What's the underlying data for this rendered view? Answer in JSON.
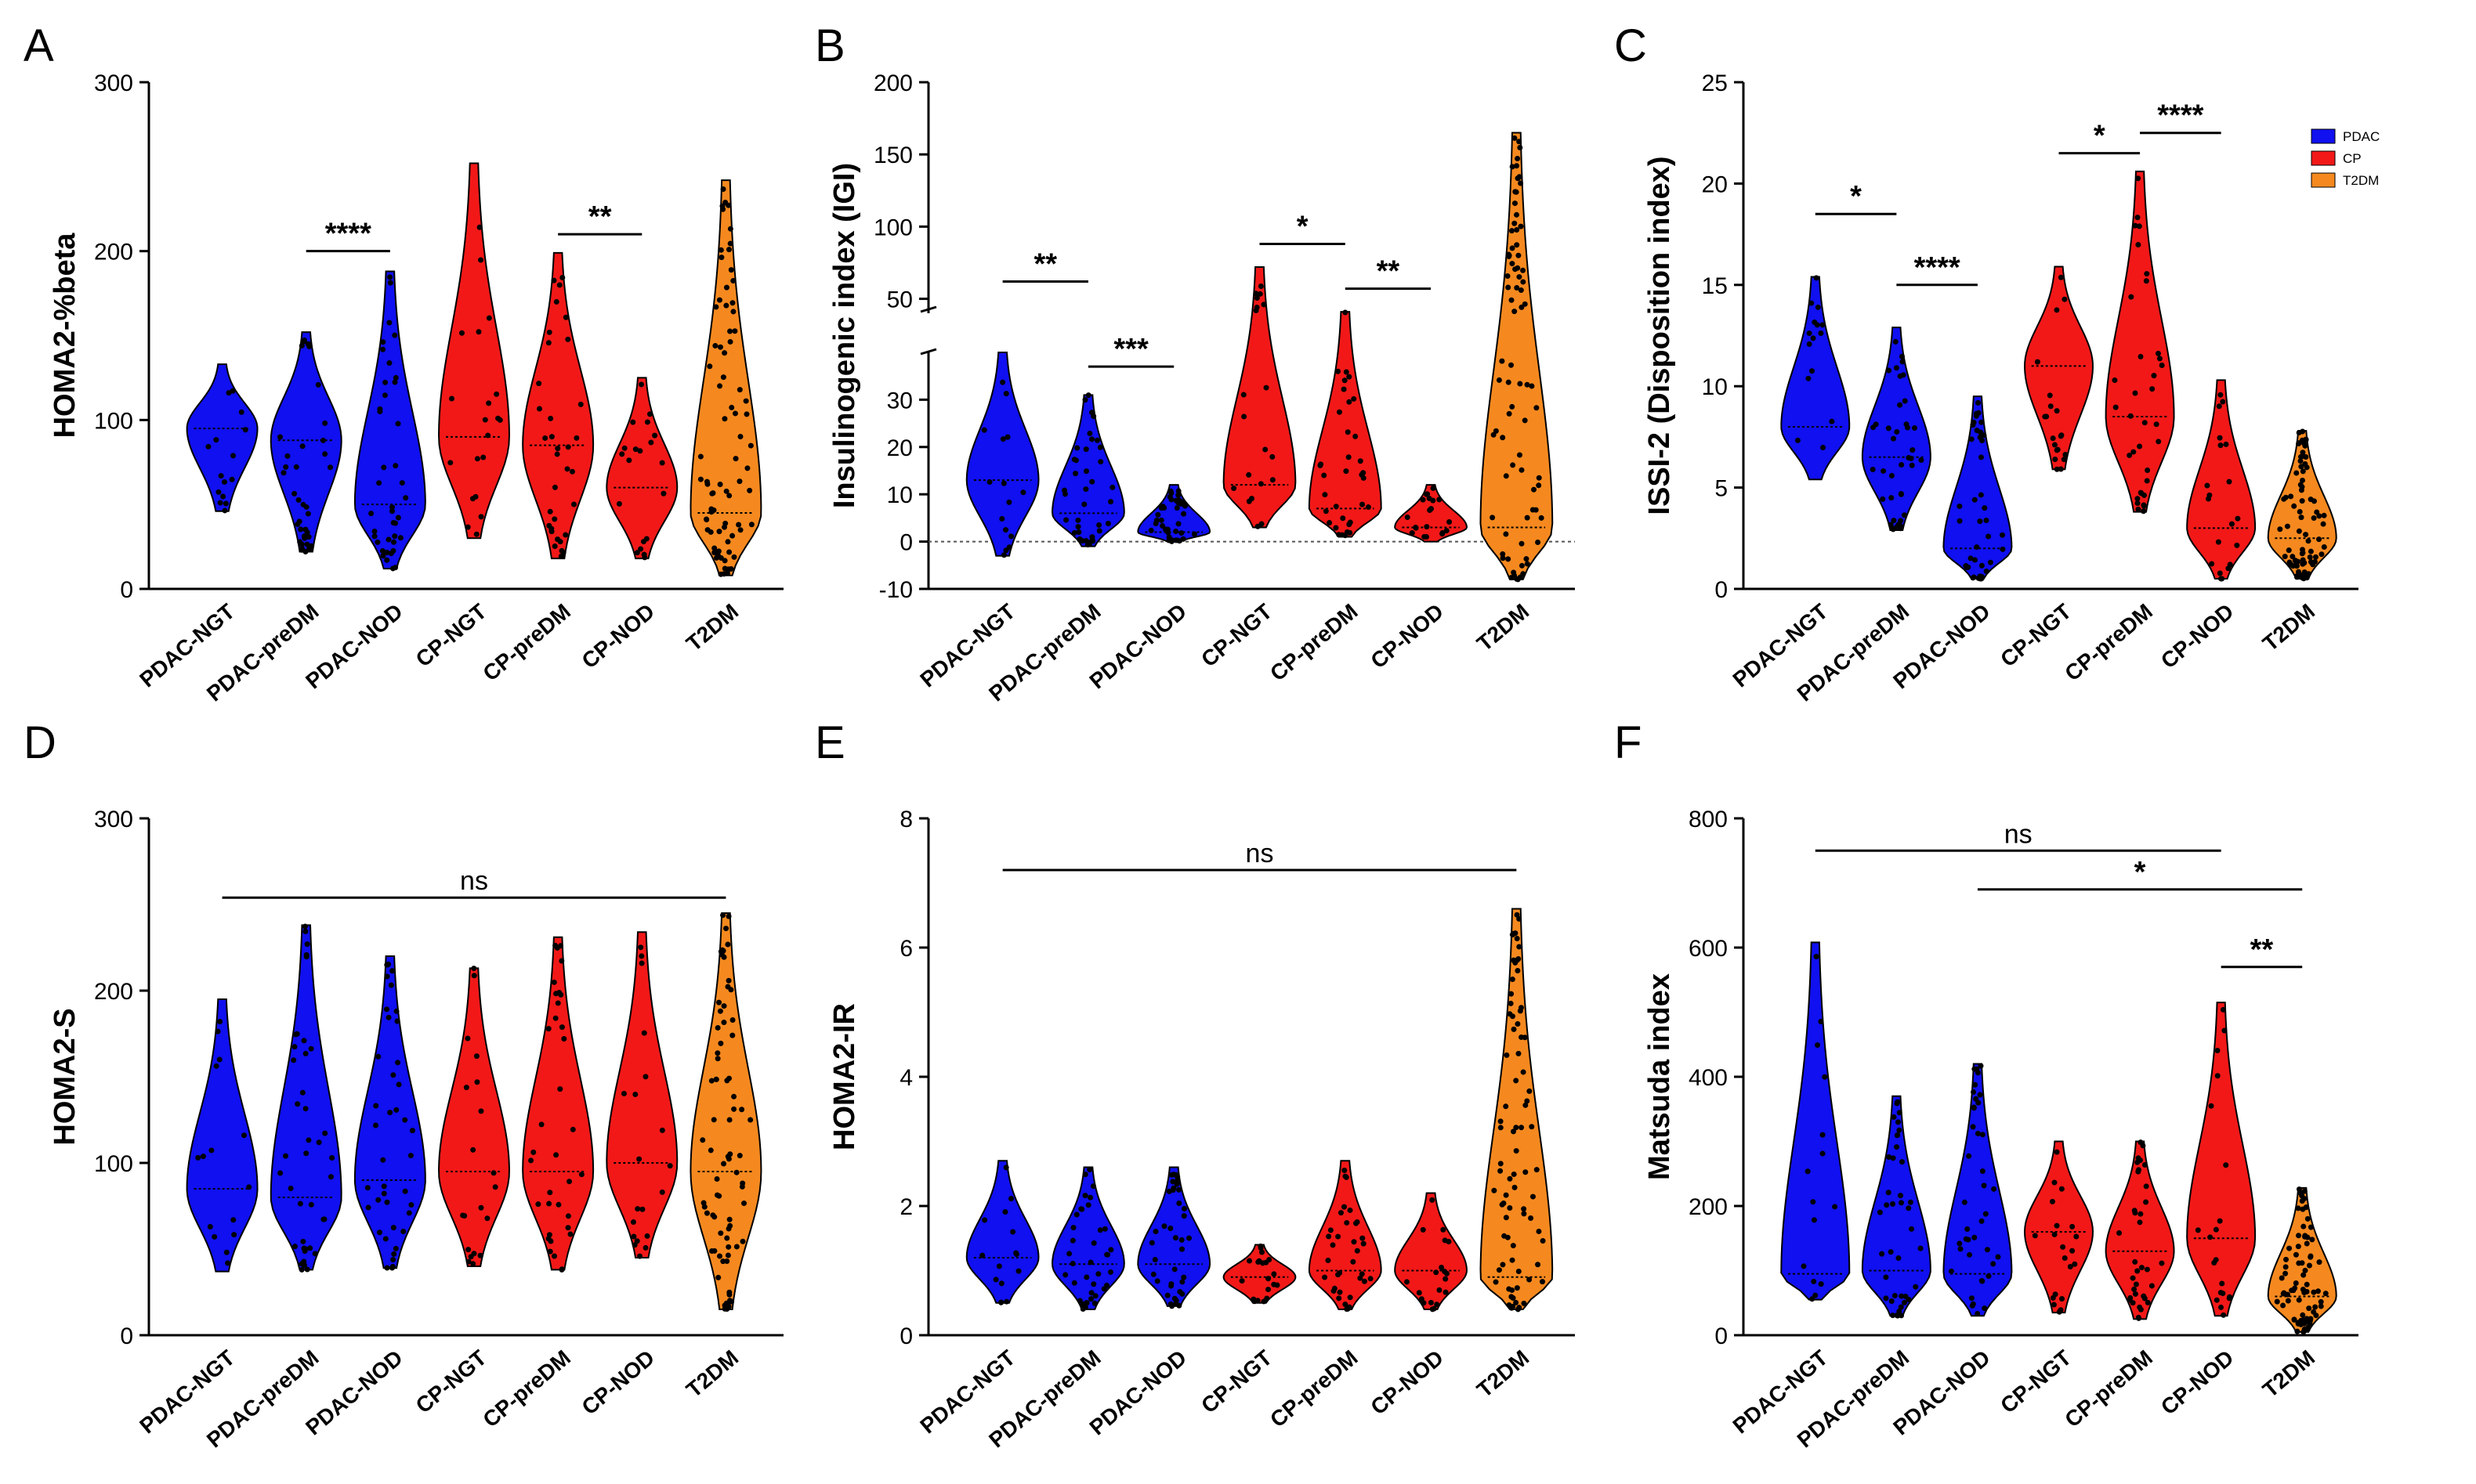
{
  "colors": {
    "PDAC": "#1010f0",
    "CP": "#f21818",
    "T2DM": "#f5891f",
    "axis": "#000000",
    "point": "#000000"
  },
  "chart_data": [
    {
      "panel": "A",
      "type": "violin",
      "title": "",
      "xlabel": "",
      "ylabel": "HOMA2-%beta",
      "ylim": [
        0,
        300
      ],
      "yticks": [
        0,
        100,
        200,
        300
      ],
      "categories": [
        "PDAC-NGT",
        "PDAC-preDM",
        "PDAC-NOD",
        "CP-NGT",
        "CP-preDM",
        "CP-NOD",
        "T2DM"
      ],
      "groups": [
        "PDAC",
        "PDAC",
        "PDAC",
        "CP",
        "CP",
        "CP",
        "T2DM"
      ],
      "series": [
        {
          "name": "PDAC-NGT",
          "min": 46,
          "max": 133,
          "median": 95,
          "n": 15
        },
        {
          "name": "PDAC-preDM",
          "min": 22,
          "max": 152,
          "median": 88,
          "n": 40
        },
        {
          "name": "PDAC-NOD",
          "min": 12,
          "max": 188,
          "median": 50,
          "n": 40
        },
        {
          "name": "CP-NGT",
          "min": 30,
          "max": 252,
          "median": 90,
          "n": 20
        },
        {
          "name": "CP-preDM",
          "min": 18,
          "max": 199,
          "median": 85,
          "n": 35
        },
        {
          "name": "CP-NOD",
          "min": 18,
          "max": 125,
          "median": 60,
          "n": 20
        },
        {
          "name": "T2DM",
          "min": 8,
          "max": 242,
          "median": 45,
          "n": 80
        }
      ],
      "significance": [
        {
          "from": 1,
          "to": 2,
          "y": 200,
          "label": "****"
        },
        {
          "from": 4,
          "to": 5,
          "y": 210,
          "label": "**"
        }
      ]
    },
    {
      "panel": "B",
      "type": "violin",
      "title": "",
      "xlabel": "",
      "ylabel": "Insulinogenic index (IGI)",
      "ylim": [
        -10,
        200
      ],
      "axis_break": {
        "lower": [
          -10,
          40
        ],
        "upper": [
          40,
          200
        ]
      },
      "yticks": [
        -10,
        0,
        10,
        20,
        30,
        50,
        100,
        150,
        200
      ],
      "categories": [
        "PDAC-NGT",
        "PDAC-preDM",
        "PDAC-NOD",
        "CP-NGT",
        "CP-preDM",
        "CP-NOD",
        "T2DM"
      ],
      "groups": [
        "PDAC",
        "PDAC",
        "PDAC",
        "CP",
        "CP",
        "CP",
        "T2DM"
      ],
      "series": [
        {
          "name": "PDAC-NGT",
          "min": -3,
          "max": 40,
          "median": 13,
          "n": 15
        },
        {
          "name": "PDAC-preDM",
          "min": -1,
          "max": 31,
          "median": 6,
          "n": 40
        },
        {
          "name": "PDAC-NOD",
          "min": 0,
          "max": 12,
          "median": 2,
          "n": 40
        },
        {
          "name": "CP-NGT",
          "min": 3,
          "max": 72,
          "median": 12,
          "n": 20
        },
        {
          "name": "CP-preDM",
          "min": 1,
          "max": 41,
          "median": 7,
          "n": 35
        },
        {
          "name": "CP-NOD",
          "min": 0,
          "max": 12,
          "median": 3,
          "n": 20
        },
        {
          "name": "T2DM",
          "min": -8,
          "max": 165,
          "median": 3,
          "n": 80
        }
      ],
      "significance": [
        {
          "from": 0,
          "to": 1,
          "y": 62,
          "label": "**"
        },
        {
          "from": 1,
          "to": 2,
          "y": 37,
          "label": "***"
        },
        {
          "from": 3,
          "to": 4,
          "y": 88,
          "label": "*"
        },
        {
          "from": 4,
          "to": 5,
          "y": 57,
          "label": "**"
        }
      ],
      "reference_line": 0
    },
    {
      "panel": "C",
      "type": "violin",
      "title": "",
      "xlabel": "",
      "ylabel": "ISSI-2 (Disposition index)",
      "ylim": [
        0,
        25
      ],
      "yticks": [
        0,
        5,
        10,
        15,
        20,
        25
      ],
      "categories": [
        "PDAC-NGT",
        "PDAC-preDM",
        "PDAC-NOD",
        "CP-NGT",
        "CP-preDM",
        "CP-NOD",
        "T2DM"
      ],
      "groups": [
        "PDAC",
        "PDAC",
        "PDAC",
        "CP",
        "CP",
        "CP",
        "T2DM"
      ],
      "series": [
        {
          "name": "PDAC-NGT",
          "min": 5.4,
          "max": 15.4,
          "median": 8,
          "n": 15
        },
        {
          "name": "PDAC-preDM",
          "min": 2.9,
          "max": 12.9,
          "median": 6.5,
          "n": 40
        },
        {
          "name": "PDAC-NOD",
          "min": 0.5,
          "max": 9.5,
          "median": 2,
          "n": 40
        },
        {
          "name": "CP-NGT",
          "min": 5.9,
          "max": 15.9,
          "median": 11,
          "n": 20
        },
        {
          "name": "CP-preDM",
          "min": 3.8,
          "max": 20.6,
          "median": 8.5,
          "n": 35
        },
        {
          "name": "CP-NOD",
          "min": 0.5,
          "max": 10.3,
          "median": 3,
          "n": 20
        },
        {
          "name": "T2DM",
          "min": 0.5,
          "max": 7.8,
          "median": 2.5,
          "n": 80
        }
      ],
      "significance": [
        {
          "from": 0,
          "to": 1,
          "y": 18.5,
          "label": "*"
        },
        {
          "from": 1,
          "to": 2,
          "y": 15,
          "label": "****"
        },
        {
          "from": 3,
          "to": 4,
          "y": 21.5,
          "label": "*"
        },
        {
          "from": 4,
          "to": 5,
          "y": 22.5,
          "label": "****"
        }
      ],
      "legend": {
        "placement": "top-right",
        "entries": [
          "PDAC",
          "CP",
          "T2DM"
        ]
      }
    },
    {
      "panel": "D",
      "type": "violin",
      "title": "",
      "xlabel": "",
      "ylabel": "HOMA2-S",
      "ylim": [
        0,
        300
      ],
      "yticks": [
        0,
        100,
        200,
        300
      ],
      "categories": [
        "PDAC-NGT",
        "PDAC-preDM",
        "PDAC-NOD",
        "CP-NGT",
        "CP-preDM",
        "CP-NOD",
        "T2DM"
      ],
      "groups": [
        "PDAC",
        "PDAC",
        "PDAC",
        "CP",
        "CP",
        "CP",
        "T2DM"
      ],
      "series": [
        {
          "name": "PDAC-NGT",
          "min": 37,
          "max": 195,
          "median": 85,
          "n": 15
        },
        {
          "name": "PDAC-preDM",
          "min": 38,
          "max": 238,
          "median": 80,
          "n": 40
        },
        {
          "name": "PDAC-NOD",
          "min": 39,
          "max": 220,
          "median": 90,
          "n": 40
        },
        {
          "name": "CP-NGT",
          "min": 40,
          "max": 213,
          "median": 95,
          "n": 20
        },
        {
          "name": "CP-preDM",
          "min": 38,
          "max": 231,
          "median": 95,
          "n": 35
        },
        {
          "name": "CP-NOD",
          "min": 45,
          "max": 234,
          "median": 100,
          "n": 20
        },
        {
          "name": "T2DM",
          "min": 15,
          "max": 245,
          "median": 95,
          "n": 80
        }
      ],
      "significance": [
        {
          "from": 0,
          "to": 6,
          "y": 254,
          "label": "ns"
        }
      ]
    },
    {
      "panel": "E",
      "type": "violin",
      "title": "",
      "xlabel": "",
      "ylabel": "HOMA2-IR",
      "ylim": [
        0,
        8
      ],
      "yticks": [
        0,
        2,
        4,
        6,
        8
      ],
      "categories": [
        "PDAC-NGT",
        "PDAC-preDM",
        "PDAC-NOD",
        "CP-NGT",
        "CP-preDM",
        "CP-NOD",
        "T2DM"
      ],
      "groups": [
        "PDAC",
        "PDAC",
        "PDAC",
        "CP",
        "CP",
        "CP",
        "T2DM"
      ],
      "series": [
        {
          "name": "PDAC-NGT",
          "min": 0.5,
          "max": 2.7,
          "median": 1.2,
          "n": 15
        },
        {
          "name": "PDAC-preDM",
          "min": 0.4,
          "max": 2.6,
          "median": 1.1,
          "n": 40
        },
        {
          "name": "PDAC-NOD",
          "min": 0.45,
          "max": 2.6,
          "median": 1.1,
          "n": 40
        },
        {
          "name": "CP-NGT",
          "min": 0.5,
          "max": 1.4,
          "median": 0.9,
          "n": 20
        },
        {
          "name": "CP-preDM",
          "min": 0.4,
          "max": 2.7,
          "median": 1.0,
          "n": 35
        },
        {
          "name": "CP-NOD",
          "min": 0.4,
          "max": 2.2,
          "median": 1.0,
          "n": 20
        },
        {
          "name": "T2DM",
          "min": 0.4,
          "max": 6.6,
          "median": 0.9,
          "n": 80
        }
      ],
      "significance": [
        {
          "from": 0,
          "to": 6,
          "y": 7.2,
          "label": "ns"
        }
      ]
    },
    {
      "panel": "F",
      "type": "violin",
      "title": "",
      "xlabel": "",
      "ylabel": "Matsuda index",
      "ylim": [
        0,
        800
      ],
      "yticks": [
        0,
        200,
        400,
        600,
        800
      ],
      "categories": [
        "PDAC-NGT",
        "PDAC-preDM",
        "PDAC-NOD",
        "CP-NGT",
        "CP-preDM",
        "CP-NOD",
        "T2DM"
      ],
      "groups": [
        "PDAC",
        "PDAC",
        "PDAC",
        "CP",
        "CP",
        "CP",
        "T2DM"
      ],
      "series": [
        {
          "name": "PDAC-NGT",
          "min": 55,
          "max": 608,
          "median": 95,
          "n": 15
        },
        {
          "name": "PDAC-preDM",
          "min": 30,
          "max": 370,
          "median": 100,
          "n": 40
        },
        {
          "name": "PDAC-NOD",
          "min": 30,
          "max": 420,
          "median": 95,
          "n": 40
        },
        {
          "name": "CP-NGT",
          "min": 35,
          "max": 300,
          "median": 160,
          "n": 20
        },
        {
          "name": "CP-preDM",
          "min": 25,
          "max": 300,
          "median": 130,
          "n": 35
        },
        {
          "name": "CP-NOD",
          "min": 30,
          "max": 515,
          "median": 150,
          "n": 20
        },
        {
          "name": "T2DM",
          "min": 5,
          "max": 228,
          "median": 60,
          "n": 80
        }
      ],
      "significance": [
        {
          "from": 0,
          "to": 5,
          "y": 750,
          "label": "ns"
        },
        {
          "from": 2,
          "to": 6,
          "y": 690,
          "label": "*"
        },
        {
          "from": 5,
          "to": 6,
          "y": 570,
          "label": "**"
        }
      ]
    }
  ]
}
